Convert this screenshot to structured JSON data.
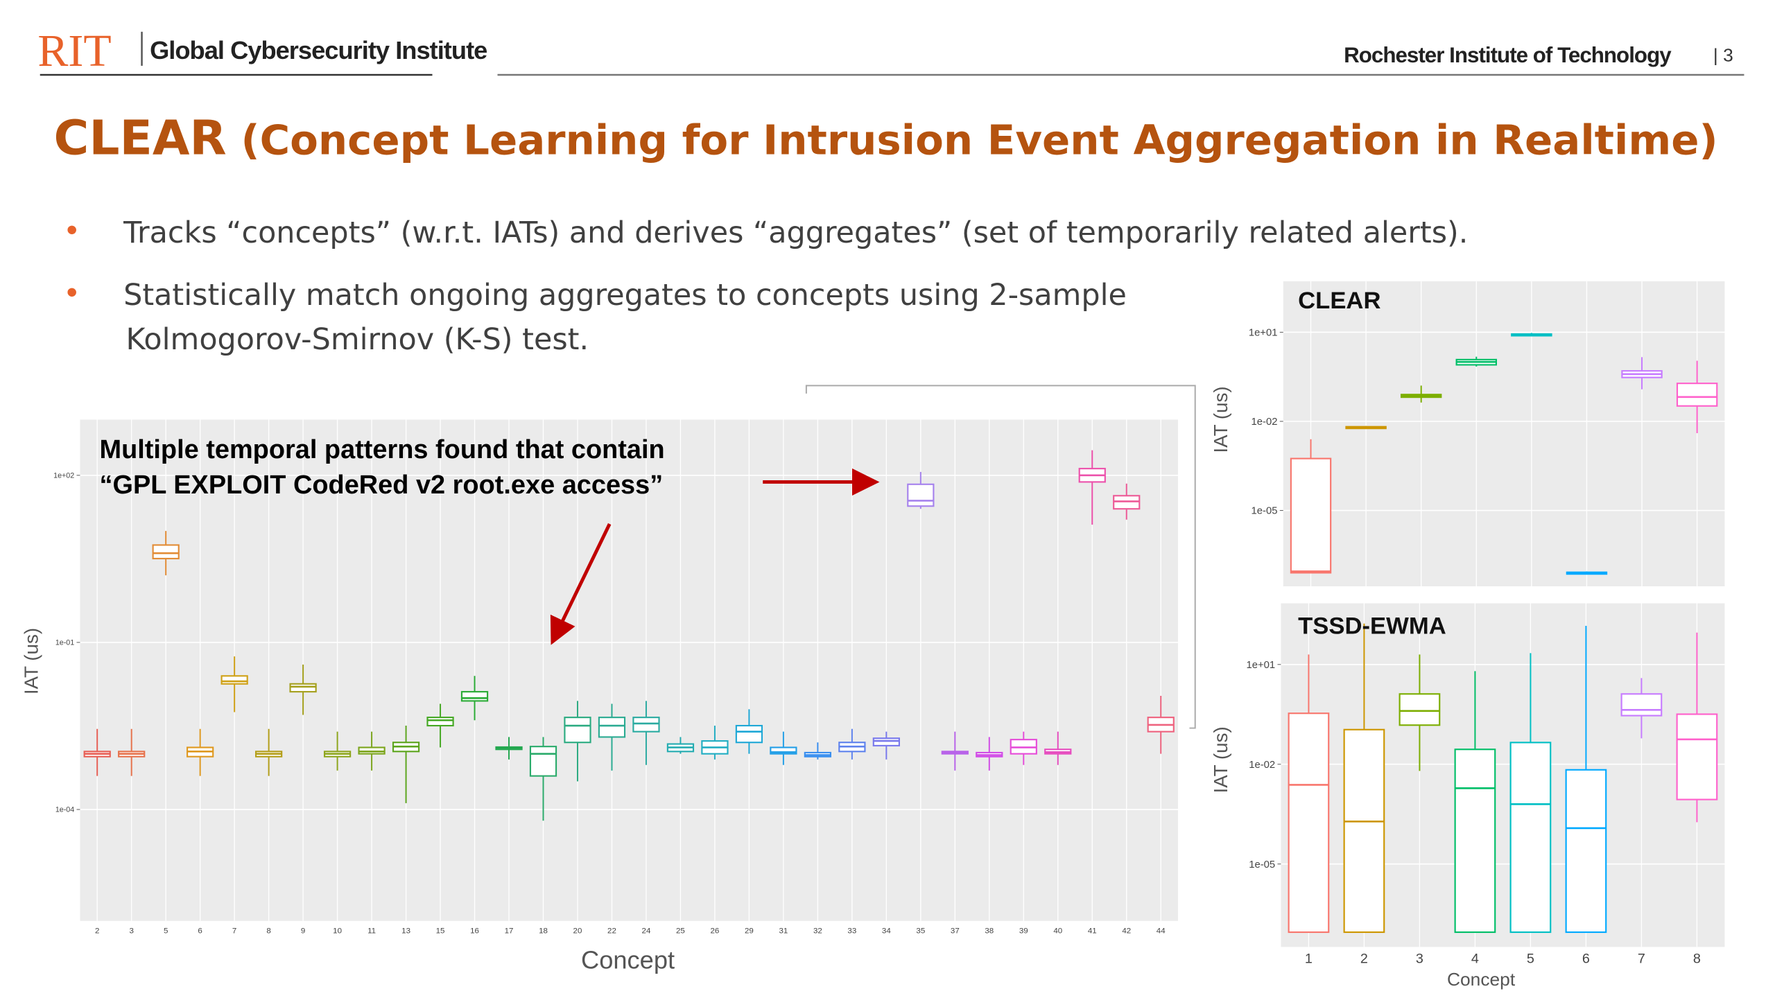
{
  "header": {
    "logo": "RIT",
    "institute": "Global Cybersecurity Institute",
    "university": "Rochester Institute of Technology",
    "page": "| 3"
  },
  "title": {
    "main": "CLEAR",
    "rest": " (Concept Learning for Intrusion Event Aggregation in Realtime)"
  },
  "bullets": [
    [
      "Tracks “concepts” (w.r.t. IATs) and derives “aggregates” (set of temporarily related alerts)."
    ],
    [
      "Statistically match ongoing aggregates to concepts using 2-sample",
      "Kolmogorov-Smirnov (K-S) test."
    ]
  ],
  "annotation": [
    "Multiple temporal patterns found that contain",
    "“GPL EXPLOIT CodeRed v2 root.exe access”"
  ],
  "chart_data": [
    {
      "type": "box",
      "y_label": "IAT (us)",
      "x_label": "Concept",
      "log_y": true,
      "grid": true,
      "ylim": [
        1e-06,
        1000
      ],
      "yticks": [
        {
          "value": 100,
          "label": "1e+02"
        },
        {
          "value": 0.1,
          "label": "1e-01"
        },
        {
          "value": 0.0001,
          "label": "1e-04"
        }
      ],
      "categories": [
        "2",
        "3",
        "5",
        "6",
        "7",
        "8",
        "9",
        "10",
        "11",
        "13",
        "15",
        "16",
        "17",
        "18",
        "20",
        "22",
        "24",
        "25",
        "26",
        "29",
        "31",
        "32",
        "33",
        "34",
        "35",
        "37",
        "38",
        "39",
        "40",
        "41",
        "42",
        "44"
      ],
      "colors": [
        "hsl(4,75%,62%)",
        "hsl(15,75%,60%)",
        "hsl(30,75%,55%)",
        "hsl(38,75%,50%)",
        "hsl(45,80%,45%)",
        "hsl(52,75%,40%)",
        "hsl(58,70%,38%)",
        "hsl(70,70%,38%)",
        "hsl(78,70%,38%)",
        "hsl(92,70%,38%)",
        "hsl(105,65%,40%)",
        "hsl(125,60%,42%)",
        "hsl(140,65%,40%)",
        "hsl(150,60%,42%)",
        "hsl(160,60%,42%)",
        "hsl(168,60%,42%)",
        "hsl(175,60%,42%)",
        "hsl(182,65%,42%)",
        "hsl(188,70%,45%)",
        "hsl(195,75%,48%)",
        "hsl(202,80%,52%)",
        "hsl(212,85%,58%)",
        "hsl(225,80%,65%)",
        "hsl(240,75%,70%)",
        "hsl(260,75%,72%)",
        "hsl(278,75%,65%)",
        "hsl(292,75%,60%)",
        "hsl(305,75%,60%)",
        "hsl(315,75%,60%)",
        "hsl(325,80%,62%)",
        "hsl(335,80%,64%)",
        "hsl(348,80%,66%)"
      ],
      "whisker_low": [
        0.0004,
        0.0004,
        1.6,
        0.0004,
        0.0056,
        0.0004,
        0.005,
        0.0005,
        0.0005,
        0.00013,
        0.0013,
        0.004,
        0.00079,
        6.3e-05,
        0.00032,
        0.0005,
        0.00063,
        0.001,
        0.00079,
        0.001,
        0.00063,
        0.00079,
        0.00079,
        0.00079,
        25,
        0.0005,
        0.0005,
        0.00063,
        0.00063,
        13,
        16,
        0.001
      ],
      "q1": [
        0.00089,
        0.00089,
        3.2,
        0.00089,
        0.018,
        0.00089,
        0.013,
        0.00089,
        0.001,
        0.0011,
        0.0032,
        0.0089,
        0.0012,
        0.0004,
        0.0016,
        0.002,
        0.0025,
        0.0011,
        0.001,
        0.0016,
        0.001,
        0.00089,
        0.0011,
        0.0014,
        28,
        0.001,
        0.00089,
        0.001,
        0.001,
        76,
        25,
        0.0025
      ],
      "median": [
        0.001,
        0.001,
        4,
        0.0011,
        0.02,
        0.001,
        0.016,
        0.001,
        0.0011,
        0.00135,
        0.004,
        0.01,
        0.00126,
        0.001,
        0.0032,
        0.0032,
        0.0035,
        0.0013,
        0.0013,
        0.0025,
        0.00107,
        0.00095,
        0.00135,
        0.0017,
        35,
        0.00105,
        0.00095,
        0.0013,
        0.00107,
        100,
        34,
        0.0033
      ],
      "q3": [
        0.0011,
        0.0011,
        5.6,
        0.0013,
        0.025,
        0.0011,
        0.018,
        0.0011,
        0.0013,
        0.0016,
        0.0045,
        0.013,
        0.00132,
        0.00135,
        0.0045,
        0.0045,
        0.0045,
        0.0015,
        0.0017,
        0.0032,
        0.0013,
        0.00105,
        0.0016,
        0.0019,
        69,
        0.0011,
        0.00105,
        0.0018,
        0.0012,
        132,
        43,
        0.0045
      ],
      "whisker_high": [
        0.0028,
        0.0028,
        10,
        0.0028,
        0.056,
        0.0028,
        0.04,
        0.0025,
        0.0025,
        0.0032,
        0.0079,
        0.025,
        0.002,
        0.002,
        0.0089,
        0.0079,
        0.0089,
        0.002,
        0.0032,
        0.0063,
        0.0025,
        0.0016,
        0.0028,
        0.0025,
        115,
        0.0025,
        0.002,
        0.0025,
        0.0025,
        282,
        71,
        0.011
      ]
    },
    {
      "type": "box",
      "title": "CLEAR",
      "y_label": "IAT (us)",
      "log_y": true,
      "grid": true,
      "ylim": [
        2.8e-08,
        520
      ],
      "yticks": [
        {
          "value": 10,
          "label": "1e+01"
        },
        {
          "value": 0.01,
          "label": "1e-02"
        },
        {
          "value": 1e-05,
          "label": "1e-05"
        }
      ],
      "categories": [
        null,
        null,
        null,
        null,
        null,
        null,
        null,
        null
      ],
      "colors": [
        "#F8766D",
        "#CD9600",
        "#7CAE00",
        "#00BE67",
        "#00BFC4",
        "#00A9FF",
        "#C77CFF",
        "#FF61CC"
      ],
      "whisker_low": [
        7.9e-08,
        0.0056,
        0.043,
        0.7,
        7.5,
        7.5e-08,
        0.12,
        0.004
      ],
      "q1": [
        8e-08,
        0.006,
        0.065,
        0.8,
        8,
        7.9e-08,
        0.3,
        0.033
      ],
      "median": [
        8.9e-08,
        0.0063,
        0.072,
        1,
        8.3,
        8.1e-08,
        0.39,
        0.066
      ],
      "q3": [
        0.00056,
        0.0066,
        0.08,
        1.2,
        8.7,
        8.3e-08,
        0.5,
        0.19
      ],
      "whisker_high": [
        0.0025,
        0.007,
        0.16,
        1.5,
        9.5,
        8.9e-08,
        1.45,
        1.1
      ]
    },
    {
      "type": "box",
      "title": "TSSD-EWMA",
      "y_label": "IAT (us)",
      "x_label": "Concept",
      "log_y": true,
      "grid": true,
      "ylim": [
        3.2e-08,
        690
      ],
      "yticks": [
        {
          "value": 10,
          "label": "1e+01"
        },
        {
          "value": 0.01,
          "label": "1e-02"
        },
        {
          "value": 1e-05,
          "label": "1e-05"
        }
      ],
      "categories": [
        "1",
        "2",
        "3",
        "4",
        "5",
        "6",
        "7",
        "8"
      ],
      "colors": [
        "#F8766D",
        "#CD9600",
        "#7CAE00",
        "#00BE67",
        "#00BFC4",
        "#00A9FF",
        "#C77CFF",
        "#FF61CC"
      ],
      "whisker_low": [
        8.9e-08,
        8.9e-08,
        0.0063,
        8.9e-08,
        8.9e-08,
        8.9e-08,
        0.06,
        0.00018
      ],
      "q1": [
        8.9e-08,
        8.9e-08,
        0.15,
        8.9e-08,
        8.9e-08,
        8.9e-08,
        0.29,
        0.00087
      ],
      "median": [
        0.0024,
        0.00019,
        0.4,
        0.0019,
        0.00063,
        0.00012,
        0.43,
        0.056
      ],
      "q3": [
        0.34,
        0.11,
        1.3,
        0.028,
        0.045,
        0.0068,
        1.3,
        0.32
      ],
      "whisker_high": [
        20,
        170,
        20,
        6.3,
        22,
        145,
        3.9,
        91
      ]
    }
  ]
}
